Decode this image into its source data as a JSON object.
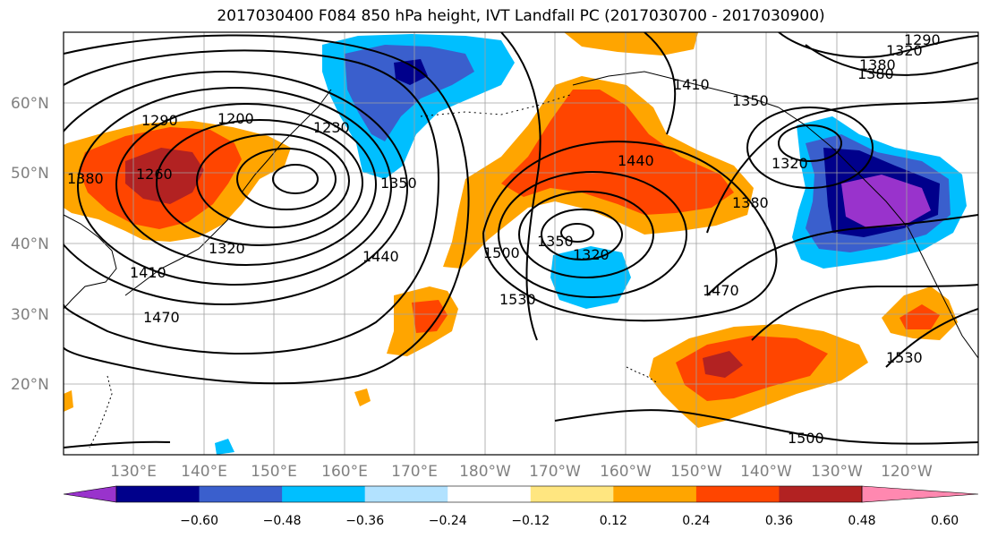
{
  "title": "2017030400 F084 850 hPa height, IVT Landfall PC (2017030700 - 2017030900)",
  "lat_labels": [
    "60°N",
    "50°N",
    "40°N",
    "30°N",
    "20°N"
  ],
  "lon_labels": [
    "130°E",
    "140°E",
    "150°E",
    "160°E",
    "170°E",
    "180°W",
    "170°W",
    "160°W",
    "150°W",
    "140°W",
    "130°W",
    "120°W"
  ],
  "contour_labels": [
    "1200",
    "1230",
    "1260",
    "1290",
    "1320",
    "1350",
    "1380",
    "1410",
    "1440",
    "1470",
    "1500",
    "1530",
    "1320",
    "1350",
    "1380",
    "1440",
    "1470",
    "1500",
    "1530",
    "1290",
    "1320",
    "1350",
    "1380",
    "1320",
    "1380",
    "1410"
  ],
  "colorbar": {
    "colors": [
      "#9933cc",
      "#00008b",
      "#3a5fcd",
      "#00bfff",
      "#b2e2ff",
      "#ffffff",
      "#ffe680",
      "#ffa500",
      "#ff4500",
      "#b22222",
      "#ff88b0"
    ],
    "tick_labels": [
      "−0.60",
      "−0.48",
      "−0.36",
      "−0.24",
      "−0.12",
      "0.12",
      "0.24",
      "0.36",
      "0.48",
      "0.60"
    ]
  }
}
